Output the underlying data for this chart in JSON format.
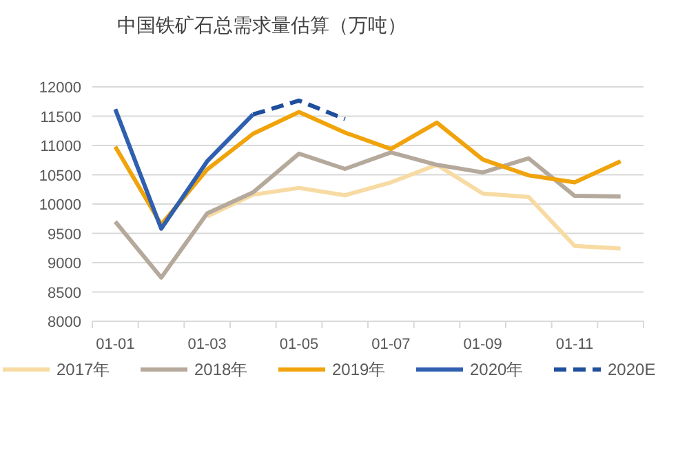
{
  "chart_data": {
    "type": "line",
    "title": "中国铁矿石总需求量估算（万吨）",
    "categories": [
      "01-01",
      null,
      "01-03",
      null,
      "01-05",
      null,
      "01-07",
      null,
      "01-09",
      null,
      "01-11",
      null
    ],
    "series": [
      {
        "name": "2017年",
        "color": "#f7dba3",
        "values": [
          null,
          null,
          9790,
          10160,
          10275,
          10150,
          10370,
          10670,
          10180,
          10120,
          9285,
          9240
        ]
      },
      {
        "name": "2018年",
        "color": "#b5a99b",
        "values": [
          9700,
          8745,
          9840,
          10200,
          10860,
          10600,
          10880,
          10670,
          10540,
          10780,
          10140,
          10130
        ]
      },
      {
        "name": "2019年",
        "color": "#f0a30a",
        "values": [
          10980,
          9650,
          10590,
          11200,
          11570,
          11220,
          10940,
          11390,
          10760,
          10490,
          10370,
          10730
        ]
      },
      {
        "name": "2020年",
        "color": "#2f5fae",
        "values": [
          11620,
          9580,
          10730,
          11530,
          null,
          null,
          null,
          null,
          null,
          null,
          null,
          null
        ]
      },
      {
        "name": "2020E",
        "color": "#1f4e9c",
        "line_style": "dashed",
        "values": [
          null,
          null,
          null,
          11530,
          11765,
          11450,
          null,
          null,
          null,
          null,
          null,
          null
        ]
      }
    ],
    "ylim": [
      8000,
      12000
    ],
    "yticks": [
      8000,
      8500,
      9000,
      9500,
      10000,
      10500,
      11000,
      11500,
      12000
    ],
    "grid": "y",
    "legend": "bottom"
  }
}
